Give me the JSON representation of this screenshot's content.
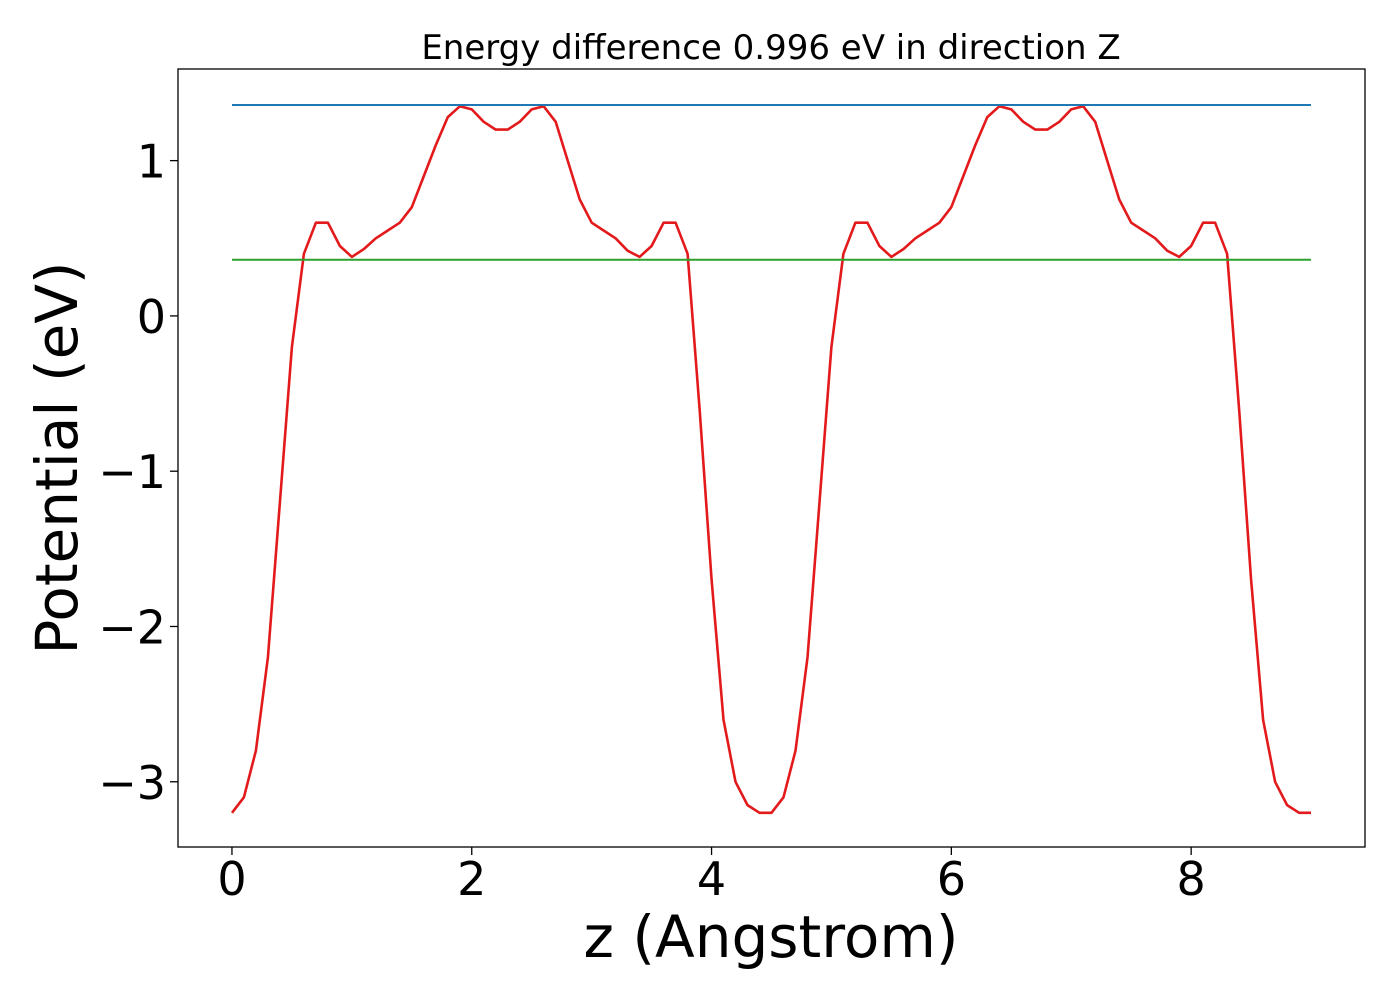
{
  "chart_data": {
    "type": "line",
    "title": "Energy difference 0.996 eV in direction Z",
    "xlabel": "z (Angstrom)",
    "ylabel": "Potential (eV)",
    "xlim": [
      -0.45,
      9.45
    ],
    "ylim": [
      -3.42,
      1.59
    ],
    "xticks": [
      0,
      2,
      4,
      6,
      8
    ],
    "xtick_labels": [
      "0",
      "2",
      "4",
      "6",
      "8"
    ],
    "yticks": [
      1,
      0,
      -1,
      -2,
      -3
    ],
    "ytick_labels": [
      "1",
      "0",
      "−1",
      "−2",
      "−3"
    ],
    "grid": false,
    "legend": "none",
    "series": [
      {
        "kind": "curve",
        "color": "#e31a1c",
        "x": [
          0.0,
          0.1,
          0.2,
          0.3,
          0.4,
          0.5,
          0.6,
          0.7,
          0.8,
          0.9,
          1.0,
          1.1,
          1.2,
          1.3,
          1.4,
          1.5,
          1.6,
          1.7,
          1.8,
          1.9,
          2.0,
          2.1,
          2.2,
          2.3,
          2.4,
          2.5,
          2.6,
          2.7,
          2.8,
          2.9,
          3.0,
          3.1,
          3.2,
          3.3,
          3.4,
          3.5,
          3.6,
          3.7,
          3.8,
          3.9,
          4.0,
          4.1,
          4.2,
          4.3,
          4.4,
          4.5,
          4.6,
          4.7,
          4.8,
          4.9,
          5.0,
          5.1,
          5.2,
          5.3,
          5.4,
          5.5,
          5.6,
          5.7,
          5.8,
          5.9,
          6.0,
          6.1,
          6.2,
          6.3,
          6.4,
          6.5,
          6.6,
          6.7,
          6.8,
          6.9,
          7.0,
          7.1,
          7.2,
          7.3,
          7.4,
          7.5,
          7.6,
          7.7,
          7.8,
          7.9,
          8.0,
          8.1,
          8.2,
          8.3,
          8.4,
          8.5,
          8.6,
          8.7,
          8.8,
          8.9,
          9.0
        ],
        "y": [
          -3.2,
          -3.1,
          -2.8,
          -2.2,
          -1.2,
          -0.2,
          0.4,
          0.6,
          0.6,
          0.45,
          0.38,
          0.43,
          0.5,
          0.55,
          0.6,
          0.7,
          0.9,
          1.1,
          1.28,
          1.35,
          1.33,
          1.25,
          1.2,
          1.2,
          1.25,
          1.33,
          1.35,
          1.25,
          1.0,
          0.75,
          0.6,
          0.55,
          0.5,
          0.42,
          0.38,
          0.45,
          0.6,
          0.6,
          0.4,
          -0.6,
          -1.7,
          -2.6,
          -3.0,
          -3.15,
          -3.2,
          -3.2,
          -3.1,
          -2.8,
          -2.2,
          -1.2,
          -0.2,
          0.4,
          0.6,
          0.6,
          0.45,
          0.38,
          0.43,
          0.5,
          0.55,
          0.6,
          0.7,
          0.9,
          1.1,
          1.28,
          1.35,
          1.33,
          1.25,
          1.2,
          1.2,
          1.25,
          1.33,
          1.35,
          1.25,
          1.0,
          0.75,
          0.6,
          0.55,
          0.5,
          0.42,
          0.38,
          0.45,
          0.6,
          0.6,
          0.4,
          -0.6,
          -1.7,
          -2.6,
          -3.0,
          -3.15,
          -3.2,
          -3.2
        ]
      },
      {
        "kind": "hline",
        "color": "#1f77b4",
        "x": [
          0.0,
          9.0
        ],
        "y": [
          1.358,
          1.358
        ]
      },
      {
        "kind": "hline",
        "color": "#2ca02c",
        "x": [
          0.0,
          9.0
        ],
        "y": [
          0.362,
          0.362
        ]
      }
    ]
  }
}
